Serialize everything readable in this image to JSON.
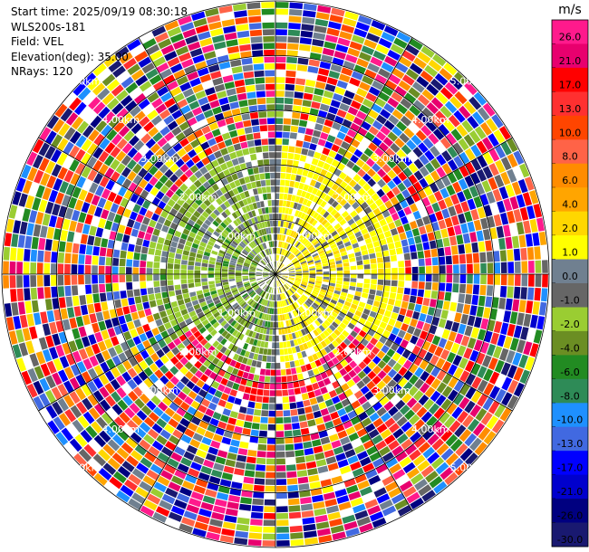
{
  "header": {
    "start_time": "Start time: 2025/09/19 08:30:18",
    "instrument": "WLS200s-181",
    "field": "Field: VEL",
    "elevation": "Elevation(deg): 35.00",
    "nrays": "NRays: 120"
  },
  "colorbar": {
    "unit": "m/s",
    "levels": [
      {
        "label": "26.0",
        "color": "#ff1a8c"
      },
      {
        "label": "21.0",
        "color": "#e8006e"
      },
      {
        "label": "17.0",
        "color": "#ff0000"
      },
      {
        "label": "13.0",
        "color": "#ff3030"
      },
      {
        "label": "10.0",
        "color": "#ff4500"
      },
      {
        "label": "8.0",
        "color": "#ff6347"
      },
      {
        "label": "6.0",
        "color": "#ff8c00"
      },
      {
        "label": "4.0",
        "color": "#ffa500"
      },
      {
        "label": "2.0",
        "color": "#ffd700"
      },
      {
        "label": "1.0",
        "color": "#ffff00"
      },
      {
        "label": "0.0",
        "color": "#708090"
      },
      {
        "label": "-1.0",
        "color": "#666666"
      },
      {
        "label": "-2.0",
        "color": "#9acd32"
      },
      {
        "label": "-4.0",
        "color": "#6b8e23"
      },
      {
        "label": "-6.0",
        "color": "#228b22"
      },
      {
        "label": "-8.0",
        "color": "#2e8b57"
      },
      {
        "label": "-10.0",
        "color": "#1e90ff"
      },
      {
        "label": "-13.0",
        "color": "#4169e1"
      },
      {
        "label": "-17.0",
        "color": "#0000ff"
      },
      {
        "label": "-21.0",
        "color": "#0000cd"
      },
      {
        "label": "-26.0",
        "color": "#000080"
      },
      {
        "label": "-30.0",
        "color": "#191970"
      }
    ]
  },
  "chart_data": {
    "type": "heatmap",
    "projection": "polar-ppi",
    "field": "VEL",
    "elevation_deg": 35.0,
    "nrays": 120,
    "range_rings_km": [
      1.0,
      2.0,
      3.0,
      4.0,
      5.0
    ],
    "ring_labels": [
      "1.00km",
      "2.00km",
      "3.00km",
      "4.00km",
      "5.00km"
    ],
    "max_range_km": 5.0,
    "radial_lines_deg": [
      0,
      30,
      60,
      90,
      120,
      150,
      180,
      210,
      240,
      270,
      300,
      330
    ],
    "ring_label_angles_deg": [
      135,
      225,
      315,
      45
    ],
    "pattern": "Near-range dipole: negative (green/olive) velocities on the west half, positive (yellow) on the east half, red/pink band around 1.8-2.3 km to the south; beyond ~2.5 km noisy, aliased values across the full color range.",
    "range_gates": 40
  }
}
